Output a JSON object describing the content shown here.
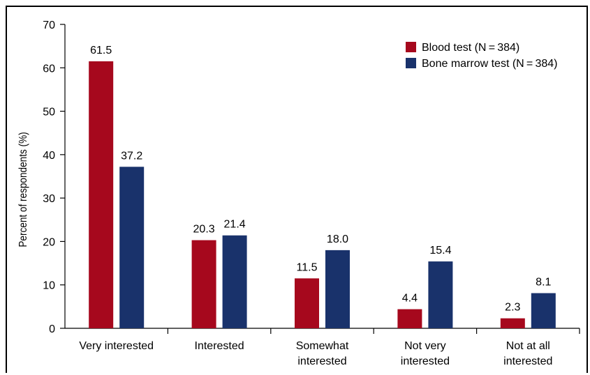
{
  "chart_data": {
    "type": "bar",
    "title": "",
    "xlabel": "",
    "ylabel": "Percent of respondents (%)",
    "ylim": [
      0,
      70
    ],
    "yticks": [
      0,
      10,
      20,
      30,
      40,
      50,
      60,
      70
    ],
    "categories": [
      [
        "Very interested"
      ],
      [
        "Interested"
      ],
      [
        "Somewhat",
        "interested"
      ],
      [
        "Not very",
        "interested"
      ],
      [
        "Not at all",
        "interested"
      ]
    ],
    "series": [
      {
        "name": "Blood test (N = 384)",
        "color": "#a6081d",
        "values": [
          61.5,
          20.3,
          11.5,
          4.4,
          2.3
        ],
        "labels": [
          "61.5",
          "20.3",
          "11.5",
          "4.4",
          "2.3"
        ]
      },
      {
        "name": "Bone marrow test (N = 384)",
        "color": "#19326b",
        "values": [
          37.2,
          21.4,
          18.0,
          15.4,
          8.1
        ],
        "labels": [
          "37.2",
          "21.4",
          "18.0",
          "15.4",
          "8.1"
        ]
      }
    ],
    "legend_position": "top-right",
    "grid": false
  }
}
